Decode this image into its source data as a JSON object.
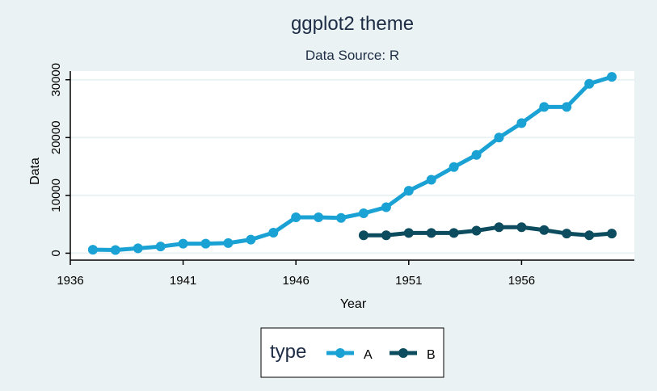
{
  "colors": {
    "background": "#eaf2f3",
    "plot_background": "#ffffff",
    "grid": "#eaf2f3",
    "series_A": "#1aa2d4",
    "series_B": "#0c4c5e",
    "title": "#1e2d45"
  },
  "chart_data": {
    "type": "line",
    "title": "ggplot2 theme",
    "subtitle": "Data Source: R",
    "xlabel": "Year",
    "ylabel": "Data",
    "xlim": [
      1936,
      1961
    ],
    "ylim": [
      -1200,
      31500
    ],
    "x_ticks": [
      1936,
      1941,
      1946,
      1951,
      1956
    ],
    "y_ticks": [
      0,
      10000,
      20000,
      30000
    ],
    "grid": "horizontal",
    "legend": {
      "title": "type",
      "placement": "bottom",
      "entries": [
        "A",
        "B"
      ]
    },
    "series": [
      {
        "name": "A",
        "color": "#1aa2d4",
        "x": [
          1937,
          1938,
          1939,
          1940,
          1941,
          1942,
          1943,
          1944,
          1945,
          1946,
          1947,
          1948,
          1949,
          1950,
          1951,
          1952,
          1953,
          1954,
          1955,
          1956,
          1957,
          1958,
          1959,
          1960
        ],
        "values": [
          600,
          550,
          850,
          1150,
          1650,
          1650,
          1750,
          2350,
          3550,
          6200,
          6200,
          6100,
          6900,
          7950,
          10800,
          12700,
          14900,
          17000,
          20000,
          22500,
          25300,
          25300,
          29300,
          30500
        ]
      },
      {
        "name": "B",
        "color": "#0c4c5e",
        "x": [
          1949,
          1950,
          1951,
          1952,
          1953,
          1954,
          1955,
          1956,
          1957,
          1958,
          1959,
          1960
        ],
        "values": [
          3100,
          3100,
          3500,
          3500,
          3500,
          3900,
          4500,
          4500,
          4000,
          3400,
          3100,
          3400
        ]
      }
    ]
  }
}
